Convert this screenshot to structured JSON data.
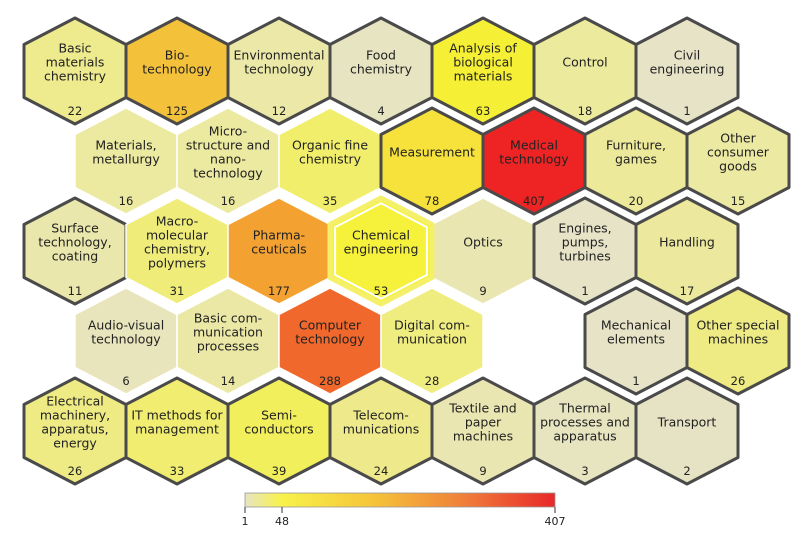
{
  "legend": {
    "min_label": "1",
    "mid_label": "48",
    "max_label": "407",
    "min": 1,
    "mid": 48,
    "max": 407
  },
  "colors": {
    "low": "#e7e4c2",
    "midlow": "#f7f24a",
    "mid": "#f6c73a",
    "high": "#f0803a",
    "max": "#e8282a",
    "border": "#4a4a4a",
    "thin": "#ffffff"
  },
  "hexes": [
    {
      "id": "basic-materials-chemistry",
      "row": 0,
      "col": 0,
      "label": [
        "Basic",
        "materials",
        "chemistry"
      ],
      "count": "22",
      "value": 22,
      "fill": "#eeea8e",
      "bold": true
    },
    {
      "id": "biotechnology",
      "row": 0,
      "col": 1,
      "label": [
        "Bio-",
        "technology"
      ],
      "count": "125",
      "value": 125,
      "fill": "#f4c23a",
      "bold": true
    },
    {
      "id": "environmental-technology",
      "row": 0,
      "col": 2,
      "label": [
        "Environmental",
        "technology"
      ],
      "count": "12",
      "value": 12,
      "fill": "#ebe8a8",
      "bold": true
    },
    {
      "id": "food-chemistry",
      "row": 0,
      "col": 3,
      "label": [
        "Food",
        "chemistry"
      ],
      "count": "4",
      "value": 4,
      "fill": "#e7e4c2",
      "bold": true
    },
    {
      "id": "analysis-biological-materials",
      "row": 0,
      "col": 4,
      "label": [
        "Analysis of",
        "biological",
        "materials"
      ],
      "count": "63",
      "value": 63,
      "fill": "#f5f035",
      "bold": true
    },
    {
      "id": "control",
      "row": 0,
      "col": 5,
      "label": [
        "Control"
      ],
      "count": "18",
      "value": 18,
      "fill": "#ecea9c",
      "bold": true
    },
    {
      "id": "civil-engineering",
      "row": 0,
      "col": 6,
      "label": [
        "Civil",
        "engineering"
      ],
      "count": "1",
      "value": 1,
      "fill": "#e6e3c6",
      "bold": true
    },
    {
      "id": "materials-metallurgy",
      "row": 1,
      "col": 0,
      "label": [
        "Materials,",
        "metallurgy"
      ],
      "count": "16",
      "value": 16,
      "fill": "#ece9a0",
      "bold": false
    },
    {
      "id": "micro-structure-nano-technology",
      "row": 1,
      "col": 1,
      "label": [
        "Micro-",
        "structure and",
        "nano-",
        "technology"
      ],
      "count": "16",
      "value": 16,
      "fill": "#ece9a0",
      "bold": false
    },
    {
      "id": "organic-fine-chemistry",
      "row": 1,
      "col": 2,
      "label": [
        "Organic fine",
        "chemistry"
      ],
      "count": "35",
      "value": 35,
      "fill": "#f1ee6c",
      "bold": false
    },
    {
      "id": "measurement",
      "row": 1,
      "col": 3,
      "label": [
        "Measurement"
      ],
      "count": "78",
      "value": 78,
      "fill": "#f6e23a",
      "bold": true
    },
    {
      "id": "medical-technology",
      "row": 1,
      "col": 4,
      "label": [
        "Medical",
        "technology"
      ],
      "count": "407",
      "value": 407,
      "fill": "#ee2424",
      "bold": true
    },
    {
      "id": "furniture-games",
      "row": 1,
      "col": 5,
      "label": [
        "Furniture,",
        "games"
      ],
      "count": "20",
      "value": 20,
      "fill": "#ede99a",
      "bold": true
    },
    {
      "id": "other-consumer-goods",
      "row": 1,
      "col": 6,
      "label": [
        "Other",
        "consumer",
        "goods"
      ],
      "count": "15",
      "value": 15,
      "fill": "#ece9a2",
      "bold": true
    },
    {
      "id": "surface-technology-coating",
      "row": 2,
      "col": 0,
      "label": [
        "Surface",
        "technology,",
        "coating"
      ],
      "count": "11",
      "value": 11,
      "fill": "#eae7ac",
      "bold": true
    },
    {
      "id": "macromolecular-chemistry-polymers",
      "row": 2,
      "col": 1,
      "label": [
        "Macro-",
        "molecular",
        "chemistry,",
        "polymers"
      ],
      "count": "31",
      "value": 31,
      "fill": "#efec7a",
      "bold": false
    },
    {
      "id": "pharmaceuticals",
      "row": 2,
      "col": 2,
      "label": [
        "Pharma-",
        "ceuticals"
      ],
      "count": "177",
      "value": 177,
      "fill": "#f3a232",
      "bold": false
    },
    {
      "id": "chemical-engineering",
      "row": 2,
      "col": 3,
      "label": [
        "Chemical",
        "engineering"
      ],
      "count": "53",
      "value": 53,
      "fill": "#f6f13a",
      "bold": false,
      "highlight": true
    },
    {
      "id": "optics",
      "row": 2,
      "col": 4,
      "label": [
        "Optics"
      ],
      "count": "9",
      "value": 9,
      "fill": "#e9e6b2",
      "bold": false
    },
    {
      "id": "engines-pumps-turbines",
      "row": 2,
      "col": 5,
      "label": [
        "Engines,",
        "pumps,",
        "turbines"
      ],
      "count": "1",
      "value": 1,
      "fill": "#e6e3c6",
      "bold": true
    },
    {
      "id": "handling",
      "row": 2,
      "col": 6,
      "label": [
        "Handling"
      ],
      "count": "17",
      "value": 17,
      "fill": "#ece99e",
      "bold": true
    },
    {
      "id": "audio-visual-technology",
      "row": 3,
      "col": 0,
      "label": [
        "Audio-visual",
        "technology"
      ],
      "count": "6",
      "value": 6,
      "fill": "#e8e5bc",
      "bold": false
    },
    {
      "id": "basic-communication-processes",
      "row": 3,
      "col": 1,
      "label": [
        "Basic com-",
        "munication",
        "processes"
      ],
      "count": "14",
      "value": 14,
      "fill": "#ebe8a6",
      "bold": false
    },
    {
      "id": "computer-technology",
      "row": 3,
      "col": 2,
      "label": [
        "Computer",
        "technology"
      ],
      "count": "288",
      "value": 288,
      "fill": "#f0682c",
      "bold": false
    },
    {
      "id": "digital-communication",
      "row": 3,
      "col": 3,
      "label": [
        "Digital com-",
        "munication"
      ],
      "count": "28",
      "value": 28,
      "fill": "#efec80",
      "bold": false
    },
    {
      "id": "mechanical-elements",
      "row": 3,
      "col": 5,
      "label": [
        "Mechanical",
        "elements"
      ],
      "count": "1",
      "value": 1,
      "fill": "#e6e3c6",
      "bold": true
    },
    {
      "id": "other-special-machines",
      "row": 3,
      "col": 6,
      "label": [
        "Other special",
        "machines"
      ],
      "count": "26",
      "value": 26,
      "fill": "#eeeb84",
      "bold": true
    },
    {
      "id": "electrical-machinery",
      "row": 4,
      "col": 0,
      "label": [
        "Electrical",
        "machinery,",
        "apparatus,",
        "energy"
      ],
      "count": "26",
      "value": 26,
      "fill": "#eeeb84",
      "bold": true
    },
    {
      "id": "it-methods-management",
      "row": 4,
      "col": 1,
      "label": [
        "IT methods for",
        "management"
      ],
      "count": "33",
      "value": 33,
      "fill": "#f0ed70",
      "bold": true
    },
    {
      "id": "semiconductors",
      "row": 4,
      "col": 2,
      "label": [
        "Semi-",
        "conductors"
      ],
      "count": "39",
      "value": 39,
      "fill": "#f2ef5c",
      "bold": true
    },
    {
      "id": "telecommunications",
      "row": 4,
      "col": 3,
      "label": [
        "Telecom-",
        "munications"
      ],
      "count": "24",
      "value": 24,
      "fill": "#eeea8c",
      "bold": true
    },
    {
      "id": "textile-paper-machines",
      "row": 4,
      "col": 4,
      "label": [
        "Textile and",
        "paper",
        "machines"
      ],
      "count": "9",
      "value": 9,
      "fill": "#e9e6b2",
      "bold": true
    },
    {
      "id": "thermal-processes-apparatus",
      "row": 4,
      "col": 5,
      "label": [
        "Thermal",
        "processes and",
        "apparatus"
      ],
      "count": "3",
      "value": 3,
      "fill": "#e7e4c0",
      "bold": true
    },
    {
      "id": "transport",
      "row": 4,
      "col": 6,
      "label": [
        "Transport"
      ],
      "count": "2",
      "value": 2,
      "fill": "#e6e3c4",
      "bold": true
    }
  ]
}
